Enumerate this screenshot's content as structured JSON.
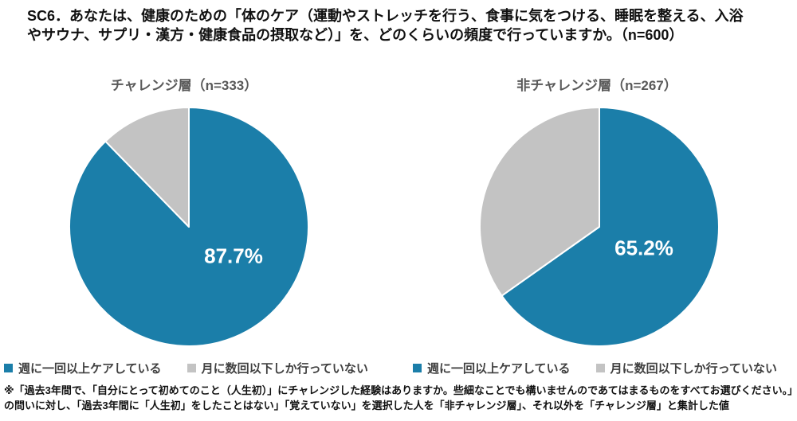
{
  "page": {
    "question_title": "SC6．あなたは、健康のための「体のケア（運動やストレッチを行う、食事に気をつける、睡眠を整える、入浴やサウナ、サプリ・漢方・健康食品の摂取など）」を、どのくらいの頻度で行っていますか。（n=600）",
    "footnote": "※「過去3年間で、「自分にとって初めてのこと（人生初）」にチャレンジした経験はありますか。些細なことでも構いませんのであてはまるものをすべてお選びください。」の問いに対し、「過去3年間に「人生初」をしたことはない」「覚えていない」を選択した人を「非チャレンジ層」、それ以外を「チャレンジ層」と集計した値"
  },
  "colors": {
    "series_blue": "#1B7EA9",
    "series_gray": "#C3C3C3",
    "chart_title_text": "#595959",
    "legend_text": "#404040",
    "body_text": "#111111",
    "data_label_text": "#FFFFFF"
  },
  "chart_data": [
    {
      "type": "pie",
      "title": "チャレンジ層（n=333）",
      "labels": [
        "週に一回以上ケアしている",
        "月に数回以下しか行っていない"
      ],
      "values": [
        87.7,
        12.3
      ],
      "colors": [
        "#1B7EA9",
        "#C3C3C3"
      ],
      "data_label": "87.7%",
      "start_angle_deg": 0,
      "direction": "clockwise",
      "legend_position": "bottom"
    },
    {
      "type": "pie",
      "title": "非チャレンジ層（n=267）",
      "labels": [
        "週に一回以上ケアしている",
        "月に数回以下しか行っていない"
      ],
      "values": [
        65.2,
        34.8
      ],
      "colors": [
        "#1B7EA9",
        "#C3C3C3"
      ],
      "data_label": "65.2%",
      "start_angle_deg": 0,
      "direction": "clockwise",
      "legend_position": "bottom"
    }
  ]
}
